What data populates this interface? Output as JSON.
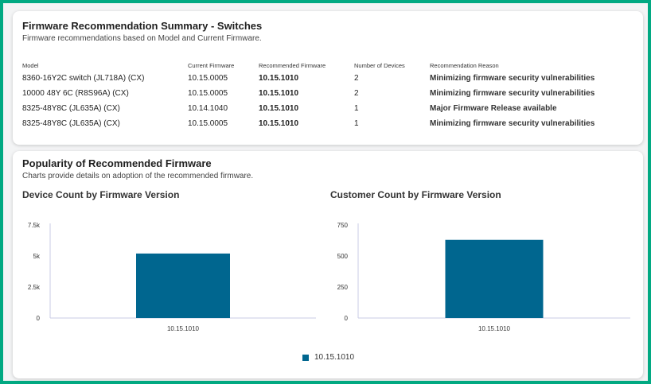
{
  "summary": {
    "title": "Firmware Recommendation Summary - Switches",
    "subtitle": "Firmware recommendations based on Model and Current Firmware.",
    "columns": [
      "Model",
      "Current Firmware",
      "Recommended Firmware",
      "Number of Devices",
      "Recommendation Reason"
    ],
    "rows": [
      [
        "8360-16Y2C switch (JL718A) (CX)",
        "10.15.0005",
        "10.15.1010",
        "2",
        "Minimizing firmware security vulnerabilities"
      ],
      [
        "10000 48Y 6C (R8S96A) (CX)",
        "10.15.0005",
        "10.15.1010",
        "2",
        "Minimizing firmware security vulnerabilities"
      ],
      [
        "8325-48Y8C (JL635A) (CX)",
        "10.14.1040",
        "10.15.1010",
        "1",
        "Major Firmware Release available"
      ],
      [
        "8325-48Y8C (JL635A) (CX)",
        "10.15.0005",
        "10.15.1010",
        "1",
        "Minimizing firmware security vulnerabilities"
      ]
    ]
  },
  "popularity": {
    "title": "Popularity of Recommended Firmware",
    "subtitle": "Charts provide details on adoption of the recommended firmware.",
    "legend_label": "10.15.1010"
  },
  "colors": {
    "accent": "#01a982",
    "bar": "#00668f",
    "axis": "#c9cbe6"
  },
  "chart_data": [
    {
      "type": "bar",
      "title": "Device Count by Firmware Version",
      "categories": [
        "10.15.1010"
      ],
      "values": [
        5200
      ],
      "ylim": [
        0,
        7500
      ],
      "yticks": [
        0,
        2500,
        5000,
        7500
      ],
      "ytick_labels": [
        "0",
        "2.5k",
        "5k",
        "7.5k"
      ],
      "legend": "bottom-center"
    },
    {
      "type": "bar",
      "title": "Customer Count by Firmware Version",
      "categories": [
        "10.15.1010"
      ],
      "values": [
        630
      ],
      "ylim": [
        0,
        750
      ],
      "yticks": [
        0,
        250,
        500,
        750
      ],
      "ytick_labels": [
        "0",
        "250",
        "500",
        "750"
      ],
      "legend": "bottom-center"
    }
  ]
}
